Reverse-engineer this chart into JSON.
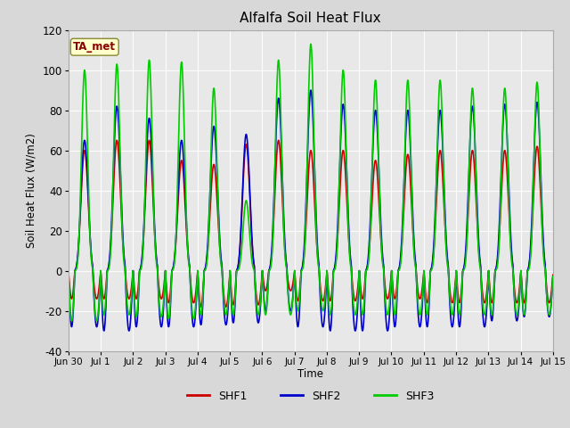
{
  "title": "Alfalfa Soil Heat Flux",
  "ylabel": "Soil Heat Flux (W/m2)",
  "xlabel": "Time",
  "ylim": [
    -40,
    120
  ],
  "background_color": "#d8d8d8",
  "plot_bg_color": "#e8e8e8",
  "xtick_labels": [
    "Jun 30",
    "Jul 1",
    "Jul 2",
    "Jul 3",
    "Jul 4",
    "Jul 5",
    "Jul 6",
    "Jul 7",
    "Jul 8",
    "Jul 9",
    "Jul 10",
    "Jul 11",
    "Jul 12",
    "Jul 13",
    "Jul 14",
    "Jul 15"
  ],
  "ytick_values": [
    -40,
    -20,
    0,
    20,
    40,
    60,
    80,
    100,
    120
  ],
  "annotation_text": "TA_met",
  "annotation_box_color": "#ffffcc",
  "annotation_text_color": "#8b0000",
  "line_colors": [
    "#cc0000",
    "#0000cc",
    "#00cc00"
  ],
  "line_labels": [
    "SHF1",
    "SHF2",
    "SHF3"
  ],
  "line_width": 1.2,
  "n_days": 15,
  "points_per_day": 96,
  "day_peaks_shf1": [
    60,
    65,
    65,
    55,
    53,
    63,
    65,
    60,
    60,
    55,
    58,
    60,
    60,
    60,
    62
  ],
  "day_peaks_shf2": [
    65,
    82,
    76,
    65,
    72,
    68,
    86,
    90,
    83,
    80,
    80,
    80,
    82,
    83,
    84
  ],
  "day_peaks_shf3": [
    100,
    103,
    105,
    104,
    91,
    35,
    105,
    113,
    100,
    95,
    95,
    95,
    91,
    91,
    94
  ],
  "night_min_shf1": [
    -14,
    -14,
    -14,
    -16,
    -18,
    -17,
    -10,
    -15,
    -15,
    -14,
    -14,
    -16,
    -16,
    -16,
    -16
  ],
  "night_min_shf2": [
    -28,
    -30,
    -28,
    -28,
    -27,
    -26,
    -20,
    -28,
    -30,
    -30,
    -28,
    -28,
    -28,
    -25,
    -23
  ],
  "night_min_shf3": [
    -25,
    -22,
    -23,
    -24,
    -22,
    -22,
    -22,
    -20,
    -22,
    -22,
    -22,
    -22,
    -22,
    -22,
    -22
  ],
  "peak_sharpness": 4.0,
  "night_sharpness": 2.0
}
